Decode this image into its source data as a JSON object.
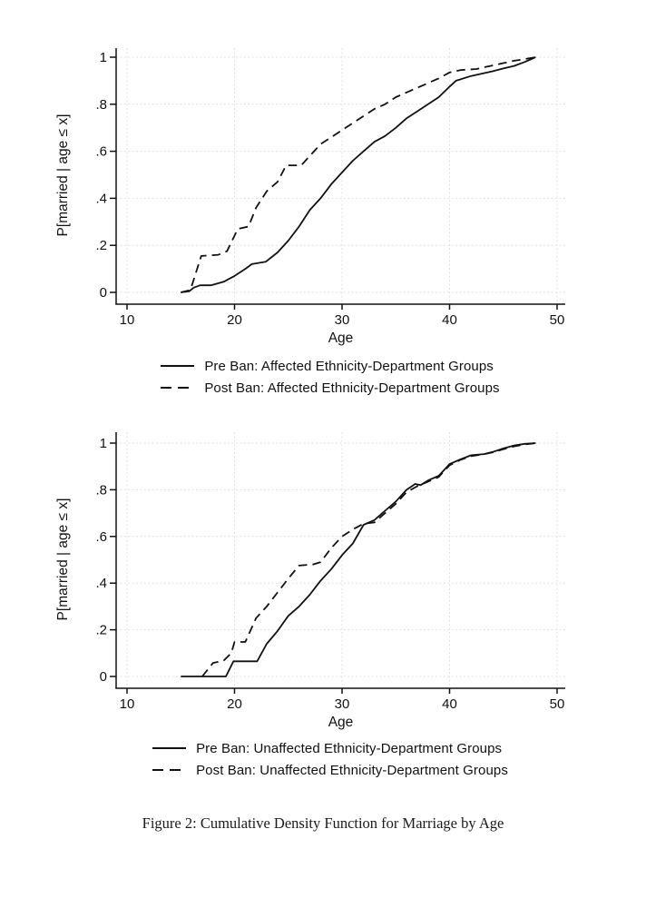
{
  "page": {
    "background": "#ffffff",
    "ink_color": "#111111",
    "grid_color": "#e0e0e0"
  },
  "caption": "Figure 2: Cumulative Density Function for Marriage by Age",
  "chart_data": [
    {
      "type": "line",
      "title": "",
      "xlabel": "Age",
      "ylabel": "P[married | age ≤ x]",
      "x_ticks": [
        10,
        20,
        30,
        40,
        50
      ],
      "y_ticks": [
        {
          "label": "0",
          "value": 0
        },
        {
          "label": ".2",
          "value": 0.2
        },
        {
          "label": ".4",
          "value": 0.4
        },
        {
          "label": ".6",
          "value": 0.6
        },
        {
          "label": ".8",
          "value": 0.8
        },
        {
          "label": "1",
          "value": 1
        }
      ],
      "xlim": [
        9,
        50.8
      ],
      "ylim": [
        0,
        1
      ],
      "grid": true,
      "legend_position": "below",
      "legend": [
        {
          "style": "solid",
          "label": "Pre Ban: Affected Ethnicity-Department Groups"
        },
        {
          "style": "dashed",
          "label": "Post Ban: Affected Ethnicity-Department Groups"
        }
      ],
      "series": [
        {
          "name": "Pre Ban: Affected Ethnicity-Department Groups",
          "style": "solid",
          "points": [
            [
              15,
              0
            ],
            [
              15.8,
              0.005
            ],
            [
              16.2,
              0.02
            ],
            [
              16.8,
              0.03
            ],
            [
              17.8,
              0.03
            ],
            [
              19,
              0.045
            ],
            [
              20,
              0.07
            ],
            [
              21,
              0.1
            ],
            [
              21.6,
              0.12
            ],
            [
              22.9,
              0.13
            ],
            [
              24,
              0.17
            ],
            [
              25,
              0.22
            ],
            [
              26,
              0.28
            ],
            [
              27,
              0.35
            ],
            [
              28,
              0.4
            ],
            [
              29,
              0.46
            ],
            [
              30,
              0.51
            ],
            [
              31,
              0.56
            ],
            [
              32,
              0.6
            ],
            [
              33,
              0.64
            ],
            [
              34,
              0.665
            ],
            [
              35,
              0.7
            ],
            [
              36,
              0.74
            ],
            [
              37,
              0.77
            ],
            [
              38,
              0.8
            ],
            [
              39,
              0.83
            ],
            [
              40,
              0.875
            ],
            [
              40.6,
              0.9
            ],
            [
              42,
              0.92
            ],
            [
              43,
              0.93
            ],
            [
              44,
              0.94
            ],
            [
              45,
              0.952
            ],
            [
              46,
              0.963
            ],
            [
              47,
              0.98
            ],
            [
              48,
              1
            ]
          ]
        },
        {
          "name": "Post Ban: Affected Ethnicity-Department Groups",
          "style": "dashed",
          "points": [
            [
              15,
              0
            ],
            [
              15.9,
              0.01
            ],
            [
              16.9,
              0.155
            ],
            [
              18.5,
              0.16
            ],
            [
              19.3,
              0.175
            ],
            [
              20.3,
              0.27
            ],
            [
              21.3,
              0.28
            ],
            [
              22,
              0.36
            ],
            [
              23,
              0.43
            ],
            [
              24,
              0.47
            ],
            [
              24.8,
              0.54
            ],
            [
              26.2,
              0.54
            ],
            [
              27,
              0.58
            ],
            [
              28,
              0.63
            ],
            [
              29,
              0.66
            ],
            [
              30,
              0.69
            ],
            [
              31,
              0.72
            ],
            [
              32,
              0.75
            ],
            [
              33,
              0.78
            ],
            [
              34,
              0.8
            ],
            [
              35,
              0.83
            ],
            [
              36,
              0.85
            ],
            [
              37,
              0.87
            ],
            [
              38,
              0.89
            ],
            [
              39,
              0.91
            ],
            [
              40,
              0.935
            ],
            [
              41,
              0.945
            ],
            [
              42.5,
              0.95
            ],
            [
              44,
              0.965
            ],
            [
              45,
              0.975
            ],
            [
              46,
              0.985
            ],
            [
              47,
              0.992
            ],
            [
              48,
              1
            ]
          ]
        }
      ]
    },
    {
      "type": "line",
      "title": "",
      "xlabel": "Age",
      "ylabel": "P[married | age ≤ x]",
      "x_ticks": [
        10,
        20,
        30,
        40,
        50
      ],
      "y_ticks": [
        {
          "label": "0",
          "value": 0
        },
        {
          "label": ".2",
          "value": 0.2
        },
        {
          "label": ".4",
          "value": 0.4
        },
        {
          "label": ".6",
          "value": 0.6
        },
        {
          "label": ".8",
          "value": 0.8
        },
        {
          "label": "1",
          "value": 1
        }
      ],
      "xlim": [
        9,
        50.8
      ],
      "ylim": [
        0,
        1
      ],
      "grid": true,
      "legend_position": "below",
      "legend": [
        {
          "style": "solid",
          "label": "Pre Ban: Unaffected Ethnicity-Department Groups"
        },
        {
          "style": "dashed",
          "label": "Post Ban: Unaffected Ethnicity-Department Groups"
        }
      ],
      "series": [
        {
          "name": "Pre Ban: Unaffected Ethnicity-Department Groups",
          "style": "solid",
          "points": [
            [
              15,
              0
            ],
            [
              19.2,
              0
            ],
            [
              19.9,
              0.065
            ],
            [
              22.1,
              0.065
            ],
            [
              23,
              0.14
            ],
            [
              24,
              0.195
            ],
            [
              25,
              0.26
            ],
            [
              26,
              0.3
            ],
            [
              27,
              0.35
            ],
            [
              28,
              0.41
            ],
            [
              29,
              0.46
            ],
            [
              30,
              0.52
            ],
            [
              31,
              0.57
            ],
            [
              32,
              0.65
            ],
            [
              33,
              0.67
            ],
            [
              34,
              0.71
            ],
            [
              35,
              0.75
            ],
            [
              36,
              0.8
            ],
            [
              36.8,
              0.825
            ],
            [
              37.3,
              0.82
            ],
            [
              38,
              0.84
            ],
            [
              39,
              0.86
            ],
            [
              40,
              0.91
            ],
            [
              41,
              0.93
            ],
            [
              42,
              0.948
            ],
            [
              43.2,
              0.953
            ],
            [
              44,
              0.962
            ],
            [
              45,
              0.977
            ],
            [
              46,
              0.99
            ],
            [
              47,
              0.997
            ],
            [
              48,
              1
            ]
          ]
        },
        {
          "name": "Post Ban: Unaffected Ethnicity-Department Groups",
          "style": "dashed",
          "points": [
            [
              17,
              0
            ],
            [
              18,
              0.058
            ],
            [
              19,
              0.068
            ],
            [
              19.7,
              0.1
            ],
            [
              20,
              0.148
            ],
            [
              21,
              0.148
            ],
            [
              22,
              0.25
            ],
            [
              23,
              0.3
            ],
            [
              24,
              0.36
            ],
            [
              25,
              0.42
            ],
            [
              26,
              0.475
            ],
            [
              27.3,
              0.48
            ],
            [
              28,
              0.49
            ],
            [
              29,
              0.55
            ],
            [
              30,
              0.6
            ],
            [
              31,
              0.63
            ],
            [
              32,
              0.655
            ],
            [
              33,
              0.66
            ],
            [
              34,
              0.7
            ],
            [
              35,
              0.74
            ],
            [
              36,
              0.79
            ],
            [
              37,
              0.815
            ],
            [
              38,
              0.835
            ],
            [
              39,
              0.855
            ],
            [
              40,
              0.905
            ],
            [
              41,
              0.928
            ],
            [
              42,
              0.944
            ],
            [
              43,
              0.951
            ],
            [
              44,
              0.96
            ],
            [
              45,
              0.974
            ],
            [
              46,
              0.986
            ],
            [
              47,
              0.994
            ],
            [
              48,
              1
            ]
          ]
        }
      ]
    }
  ]
}
